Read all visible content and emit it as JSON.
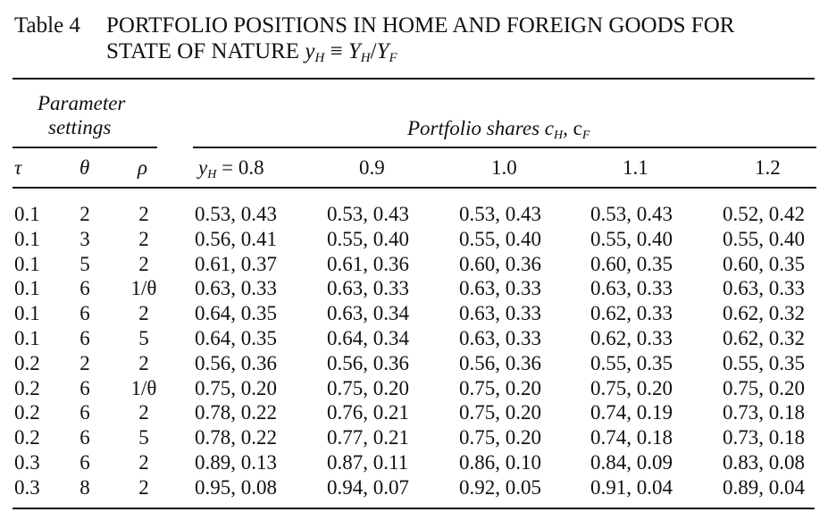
{
  "caption": {
    "number": "Table 4",
    "title_line1": "PORTFOLIO POSITIONS IN HOME AND FOREIGN GOODS FOR",
    "title_line2_prefix": "STATE OF NATURE ",
    "title_symbol": "y",
    "title_symbol_sub": "H",
    "title_eq": " ≡ ",
    "title_ratio_num": "Y",
    "title_ratio_num_sub": "H",
    "title_ratio_sep": "/",
    "title_ratio_den": "Y",
    "title_ratio_den_sub": "F"
  },
  "headers": {
    "param_group_line1": "Parameter",
    "param_group_line2": "settings",
    "shares_group_prefix": "Portfolio shares ",
    "shares_c1": "c",
    "shares_c1_sub": "H",
    "shares_sep": ", ",
    "shares_c2": "c",
    "shares_c2_sub": "F",
    "tau": "τ",
    "theta": "θ",
    "rho": "ρ",
    "state_symbol": "y",
    "state_symbol_sub": "H",
    "state_first": " = 0.8",
    "states": [
      "0.9",
      "1.0",
      "1.1",
      "1.2"
    ]
  },
  "rows": [
    {
      "tau": "0.1",
      "theta": "2",
      "rho": "2",
      "values": [
        "0.53, 0.43",
        "0.53, 0.43",
        "0.53, 0.43",
        "0.53, 0.43",
        "0.52, 0.42"
      ]
    },
    {
      "tau": "0.1",
      "theta": "3",
      "rho": "2",
      "values": [
        "0.56, 0.41",
        "0.55, 0.40",
        "0.55, 0.40",
        "0.55, 0.40",
        "0.55, 0.40"
      ]
    },
    {
      "tau": "0.1",
      "theta": "5",
      "rho": "2",
      "values": [
        "0.61, 0.37",
        "0.61, 0.36",
        "0.60, 0.36",
        "0.60, 0.35",
        "0.60, 0.35"
      ]
    },
    {
      "tau": "0.1",
      "theta": "6",
      "rho": "1/θ",
      "values": [
        "0.63, 0.33",
        "0.63, 0.33",
        "0.63, 0.33",
        "0.63, 0.33",
        "0.63, 0.33"
      ]
    },
    {
      "tau": "0.1",
      "theta": "6",
      "rho": "2",
      "values": [
        "0.64, 0.35",
        "0.63, 0.34",
        "0.63, 0.33",
        "0.62, 0.33",
        "0.62, 0.32"
      ]
    },
    {
      "tau": "0.1",
      "theta": "6",
      "rho": "5",
      "values": [
        "0.64, 0.35",
        "0.64, 0.34",
        "0.63, 0.33",
        "0.62, 0.33",
        "0.62, 0.32"
      ]
    },
    {
      "tau": "0.2",
      "theta": "2",
      "rho": "2",
      "values": [
        "0.56, 0.36",
        "0.56, 0.36",
        "0.56, 0.36",
        "0.55, 0.35",
        "0.55, 0.35"
      ]
    },
    {
      "tau": "0.2",
      "theta": "6",
      "rho": "1/θ",
      "values": [
        "0.75, 0.20",
        "0.75, 0.20",
        "0.75, 0.20",
        "0.75, 0.20",
        "0.75, 0.20"
      ]
    },
    {
      "tau": "0.2",
      "theta": "6",
      "rho": "2",
      "values": [
        "0.78, 0.22",
        "0.76, 0.21",
        "0.75, 0.20",
        "0.74, 0.19",
        "0.73, 0.18"
      ]
    },
    {
      "tau": "0.2",
      "theta": "6",
      "rho": "5",
      "values": [
        "0.78, 0.22",
        "0.77, 0.21",
        "0.75, 0.20",
        "0.74, 0.18",
        "0.73, 0.18"
      ]
    },
    {
      "tau": "0.3",
      "theta": "6",
      "rho": "2",
      "values": [
        "0.89, 0.13",
        "0.87, 0.11",
        "0.86, 0.10",
        "0.84, 0.09",
        "0.83, 0.08"
      ]
    },
    {
      "tau": "0.3",
      "theta": "8",
      "rho": "2",
      "values": [
        "0.95, 0.08",
        "0.94, 0.07",
        "0.92, 0.05",
        "0.91, 0.04",
        "0.89, 0.04"
      ]
    }
  ]
}
